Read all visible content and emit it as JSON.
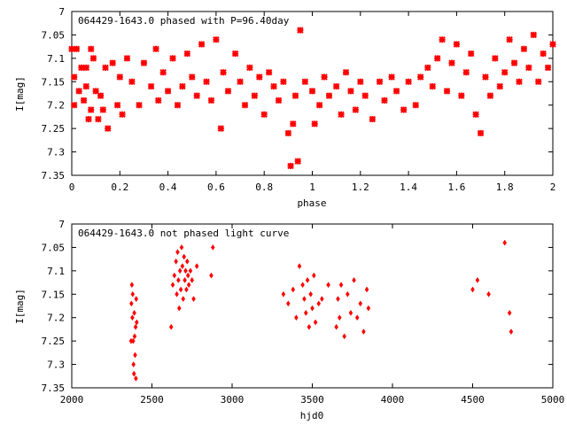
{
  "chart_data": [
    {
      "type": "scatter",
      "title": "064429-1643.0 phased with P=96.40day",
      "xlabel": "phase",
      "ylabel": "I[mag]",
      "xlim": [
        0,
        2
      ],
      "ylim": [
        7.35,
        7.0
      ],
      "y_inverted": true,
      "xticks": [
        0,
        0.2,
        0.4,
        0.6,
        0.8,
        1.0,
        1.2,
        1.4,
        1.6,
        1.8,
        2.0
      ],
      "xtick_labels": [
        "0",
        "0.2",
        "0.4",
        "0.6",
        "0.8",
        "1",
        "1.2",
        "1.4",
        "1.6",
        "1.8",
        "2"
      ],
      "yticks": [
        7.0,
        7.05,
        7.1,
        7.15,
        7.2,
        7.25,
        7.3,
        7.35
      ],
      "ytick_labels": [
        "7",
        "7.05",
        "7.1",
        "7.15",
        "7.2",
        "7.25",
        "7.3",
        "7.35"
      ],
      "marker_color": "#ff0000",
      "x": [
        0.0,
        0.01,
        0.01,
        0.02,
        0.03,
        0.04,
        0.05,
        0.06,
        0.06,
        0.07,
        0.08,
        0.08,
        0.09,
        0.1,
        0.11,
        0.12,
        0.13,
        0.14,
        0.15,
        0.17,
        0.19,
        0.2,
        0.21,
        0.23,
        0.25,
        0.28,
        0.3,
        0.33,
        0.35,
        0.36,
        0.38,
        0.4,
        0.42,
        0.44,
        0.46,
        0.48,
        0.5,
        0.52,
        0.54,
        0.56,
        0.58,
        0.6,
        0.62,
        0.63,
        0.65,
        0.68,
        0.7,
        0.72,
        0.74,
        0.76,
        0.78,
        0.8,
        0.82,
        0.84,
        0.86,
        0.88,
        0.9,
        0.91,
        0.92,
        0.93,
        0.94,
        0.95,
        0.97,
        1.0,
        1.01,
        1.03,
        1.05,
        1.07,
        1.1,
        1.12,
        1.14,
        1.16,
        1.18,
        1.2,
        1.22,
        1.25,
        1.28,
        1.3,
        1.33,
        1.35,
        1.38,
        1.4,
        1.43,
        1.45,
        1.48,
        1.5,
        1.52,
        1.54,
        1.56,
        1.58,
        1.6,
        1.62,
        1.64,
        1.66,
        1.68,
        1.7,
        1.72,
        1.74,
        1.76,
        1.78,
        1.8,
        1.82,
        1.84,
        1.86,
        1.88,
        1.9,
        1.92,
        1.94,
        1.96,
        1.98,
        2.0
      ],
      "y": [
        7.08,
        7.14,
        7.2,
        7.08,
        7.17,
        7.12,
        7.19,
        7.12,
        7.16,
        7.23,
        7.08,
        7.21,
        7.1,
        7.17,
        7.23,
        7.18,
        7.21,
        7.12,
        7.25,
        7.11,
        7.2,
        7.14,
        7.22,
        7.1,
        7.15,
        7.2,
        7.11,
        7.16,
        7.08,
        7.19,
        7.13,
        7.17,
        7.1,
        7.2,
        7.16,
        7.09,
        7.14,
        7.18,
        7.07,
        7.15,
        7.19,
        7.06,
        7.25,
        7.13,
        7.17,
        7.09,
        7.15,
        7.2,
        7.12,
        7.18,
        7.14,
        7.22,
        7.13,
        7.16,
        7.19,
        7.15,
        7.26,
        7.33,
        7.24,
        7.18,
        7.32,
        7.04,
        7.15,
        7.17,
        7.24,
        7.2,
        7.14,
        7.18,
        7.16,
        7.22,
        7.13,
        7.17,
        7.21,
        7.15,
        7.18,
        7.23,
        7.15,
        7.19,
        7.14,
        7.17,
        7.21,
        7.15,
        7.2,
        7.14,
        7.12,
        7.16,
        7.1,
        7.06,
        7.17,
        7.11,
        7.07,
        7.18,
        7.13,
        7.09,
        7.22,
        7.26,
        7.14,
        7.18,
        7.1,
        7.16,
        7.13,
        7.06,
        7.11,
        7.15,
        7.08,
        7.12,
        7.05,
        7.15,
        7.09,
        7.12,
        7.07
      ]
    },
    {
      "type": "scatter",
      "title": "064429-1643.0 not phased light curve",
      "xlabel": "hjd0",
      "ylabel": "I[mag]",
      "xlim": [
        2000,
        5000
      ],
      "ylim": [
        7.35,
        7.0
      ],
      "y_inverted": true,
      "xticks": [
        2000,
        2500,
        3000,
        3500,
        4000,
        4500,
        5000
      ],
      "xtick_labels": [
        "2000",
        "2500",
        "3000",
        "3500",
        "4000",
        "4500",
        "5000"
      ],
      "yticks": [
        7.0,
        7.05,
        7.1,
        7.15,
        7.2,
        7.25,
        7.3,
        7.35
      ],
      "ytick_labels": [
        "7",
        "7.05",
        "7.1",
        "7.15",
        "7.2",
        "7.25",
        "7.3",
        "7.35"
      ],
      "marker_color": "#ff0000",
      "x": [
        2370,
        2372,
        2375,
        2378,
        2380,
        2383,
        2385,
        2388,
        2390,
        2392,
        2395,
        2398,
        2400,
        2402,
        2405,
        2620,
        2630,
        2640,
        2650,
        2655,
        2660,
        2665,
        2670,
        2675,
        2680,
        2685,
        2690,
        2695,
        2700,
        2705,
        2710,
        2715,
        2720,
        2725,
        2730,
        2740,
        2750,
        2760,
        2780,
        2870,
        2880,
        3320,
        3350,
        3380,
        3400,
        3420,
        3440,
        3450,
        3460,
        3470,
        3480,
        3490,
        3500,
        3510,
        3520,
        3540,
        3560,
        3600,
        3650,
        3660,
        3670,
        3680,
        3700,
        3720,
        3740,
        3760,
        3780,
        3800,
        3820,
        3840,
        3850,
        4500,
        4530,
        4600,
        4700,
        4730,
        4740
      ],
      "y": [
        7.25,
        7.17,
        7.13,
        7.2,
        7.15,
        7.25,
        7.3,
        7.32,
        7.19,
        7.24,
        7.28,
        7.22,
        7.33,
        7.16,
        7.21,
        7.22,
        7.13,
        7.11,
        7.08,
        7.15,
        7.06,
        7.12,
        7.18,
        7.1,
        7.14,
        7.05,
        7.09,
        7.16,
        7.07,
        7.12,
        7.1,
        7.14,
        7.08,
        7.11,
        7.13,
        7.1,
        7.12,
        7.16,
        7.09,
        7.11,
        7.05,
        7.15,
        7.17,
        7.14,
        7.2,
        7.09,
        7.13,
        7.16,
        7.19,
        7.12,
        7.22,
        7.15,
        7.18,
        7.11,
        7.21,
        7.17,
        7.16,
        7.13,
        7.22,
        7.16,
        7.2,
        7.13,
        7.24,
        7.15,
        7.19,
        7.12,
        7.2,
        7.17,
        7.23,
        7.14,
        7.18,
        7.14,
        7.12,
        7.15,
        7.04,
        7.19,
        7.23
      ]
    }
  ]
}
